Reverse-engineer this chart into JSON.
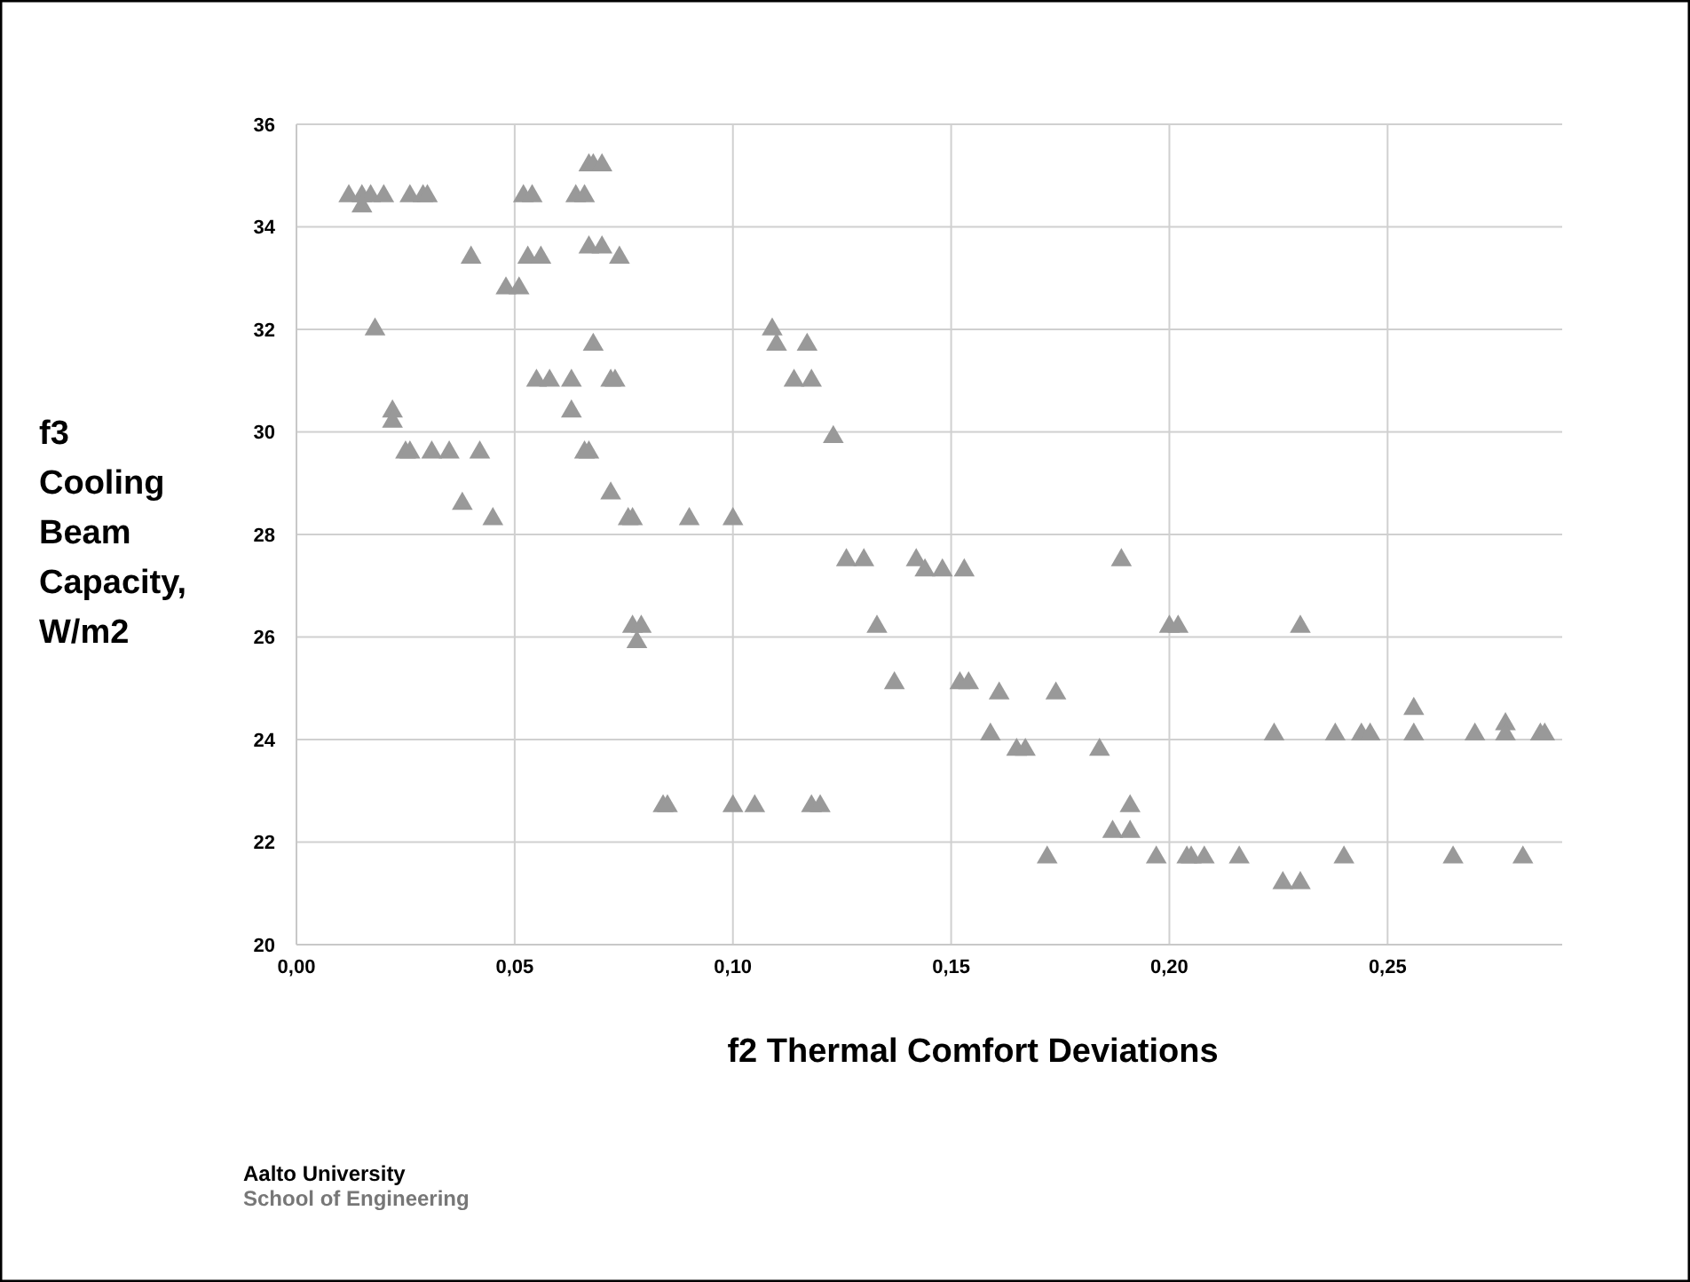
{
  "chart_data": {
    "type": "scatter",
    "xlabel": "f2 Thermal Comfort Deviations",
    "ylabel": "f3 Cooling Beam Capacity, W/m2",
    "xlim": [
      0,
      0.29
    ],
    "ylim": [
      20,
      36
    ],
    "xticks": [
      {
        "value": 0,
        "label": "0,00"
      },
      {
        "value": 0.05,
        "label": "0,05"
      },
      {
        "value": 0.1,
        "label": "0,10"
      },
      {
        "value": 0.15,
        "label": "0,15"
      },
      {
        "value": 0.2,
        "label": "0,20"
      },
      {
        "value": 0.25,
        "label": "0,25"
      }
    ],
    "yticks": [
      20,
      22,
      24,
      26,
      28,
      30,
      32,
      34,
      36
    ],
    "grid": true,
    "marker": "triangle",
    "annotations": [
      "Aalto University",
      "School of Engineering"
    ],
    "series": [
      {
        "color": "#999999",
        "x": [
          0.012,
          0.015,
          0.017,
          0.02,
          0.026,
          0.029,
          0.03,
          0.052,
          0.054,
          0.064,
          0.066,
          0.015,
          0.067,
          0.068,
          0.07,
          0.067,
          0.07,
          0.04,
          0.053,
          0.056,
          0.074,
          0.048,
          0.051,
          0.018,
          0.068,
          0.055,
          0.058,
          0.063,
          0.072,
          0.073,
          0.022,
          0.063,
          0.022,
          0.025,
          0.026,
          0.031,
          0.035,
          0.042,
          0.066,
          0.067,
          0.072,
          0.038,
          0.045,
          0.076,
          0.077,
          0.09,
          0.1,
          0.077,
          0.079,
          0.078,
          0.084,
          0.085,
          0.1,
          0.105,
          0.118,
          0.12,
          0.109,
          0.11,
          0.117,
          0.114,
          0.118,
          0.123,
          0.126,
          0.13,
          0.142,
          0.144,
          0.148,
          0.153,
          0.133,
          0.137,
          0.152,
          0.154,
          0.161,
          0.174,
          0.159,
          0.165,
          0.167,
          0.184,
          0.172,
          0.189,
          0.2,
          0.202,
          0.23,
          0.256,
          0.277,
          0.224,
          0.238,
          0.244,
          0.246,
          0.256,
          0.27,
          0.277,
          0.285,
          0.286,
          0.191,
          0.187,
          0.191,
          0.197,
          0.204,
          0.205,
          0.208,
          0.216,
          0.24,
          0.265,
          0.281,
          0.226,
          0.23
        ],
        "values": [
          34.6,
          34.6,
          34.6,
          34.6,
          34.6,
          34.6,
          34.6,
          34.6,
          34.6,
          34.6,
          34.6,
          34.4,
          35.2,
          35.2,
          35.2,
          33.6,
          33.6,
          33.4,
          33.4,
          33.4,
          33.4,
          32.8,
          32.8,
          32.0,
          31.7,
          31.0,
          31.0,
          31.0,
          31.0,
          31.0,
          30.4,
          30.4,
          30.2,
          29.6,
          29.6,
          29.6,
          29.6,
          29.6,
          29.6,
          29.6,
          28.8,
          28.6,
          28.3,
          28.3,
          28.3,
          28.3,
          28.3,
          26.2,
          26.2,
          25.9,
          22.7,
          22.7,
          22.7,
          22.7,
          22.7,
          22.7,
          32.0,
          31.7,
          31.7,
          31.0,
          31.0,
          29.9,
          27.5,
          27.5,
          27.5,
          27.3,
          27.3,
          27.3,
          26.2,
          25.1,
          25.1,
          25.1,
          24.9,
          24.9,
          24.1,
          23.8,
          23.8,
          23.8,
          21.7,
          27.5,
          26.2,
          26.2,
          26.2,
          24.6,
          24.3,
          24.1,
          24.1,
          24.1,
          24.1,
          24.1,
          24.1,
          24.1,
          24.1,
          24.1,
          22.7,
          22.2,
          22.2,
          21.7,
          21.7,
          21.7,
          21.7,
          21.7,
          21.7,
          21.7,
          21.7,
          21.2,
          21.2
        ]
      }
    ]
  }
}
